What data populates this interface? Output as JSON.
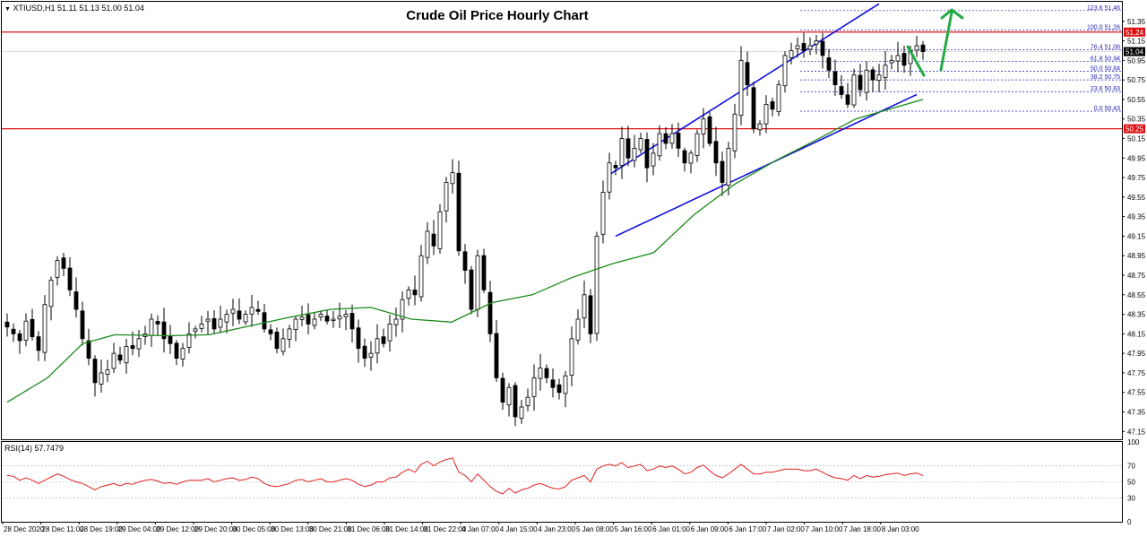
{
  "header": {
    "symbol_label": "XTIUSD,H1",
    "ohlc": "51.11 51.13 51.00 51.04",
    "title": "Crude Oil Price Hourly Chart"
  },
  "rsi_panel": {
    "label": "RSI(14) 57.7479",
    "levels": [
      "100",
      "70",
      "50",
      "30",
      "0"
    ]
  },
  "price_tags": {
    "resistance": "51.24",
    "current": "51.04",
    "support": "50.25"
  },
  "fibonacci": [
    {
      "label": "123.6 51.46",
      "price": 51.46
    },
    {
      "label": "100.0 51.26",
      "price": 51.26
    },
    {
      "label": "76.4 51.06",
      "price": 51.06
    },
    {
      "label": "61.8 50.94",
      "price": 50.94
    },
    {
      "label": "50.0 50.84",
      "price": 50.84
    },
    {
      "label": "38.2 50.75",
      "price": 50.75
    },
    {
      "label": "23.6 50.63",
      "price": 50.63
    },
    {
      "label": "0.0 50.43",
      "price": 50.43
    }
  ],
  "colors": {
    "bull": "#ffffff",
    "bear": "#000000",
    "ma": "#1a8a1a",
    "rsi": "#e02020",
    "horizontal_lines": "#e01010",
    "channel": "#1010e0",
    "fib": "#2020c0",
    "arrows": "#22aa44"
  },
  "chart_data": {
    "type": "candlestick",
    "title": "Crude Oil Price Hourly Chart",
    "symbol": "XTIUSD",
    "timeframe": "H1",
    "y_ticks": [
      51.35,
      51.15,
      50.95,
      50.75,
      50.55,
      50.35,
      50.15,
      49.95,
      49.75,
      49.55,
      49.35,
      49.15,
      48.95,
      48.75,
      48.55,
      48.35,
      48.15,
      47.95,
      47.75,
      47.55,
      47.35,
      47.15
    ],
    "ylim": [
      47.07,
      51.55
    ],
    "x_ticks": [
      "28 Dec 2020",
      "28 Dec 11:00",
      "28 Dec 19:00",
      "29 Dec 04:00",
      "29 Dec 12:00",
      "29 Dec 20:00",
      "30 Dec 05:00",
      "30 Dec 13:00",
      "30 Dec 21:00",
      "31 Dec 06:00",
      "31 Dec 14:00",
      "31 Dec 22:00",
      "4 Jan 07:00",
      "4 Jan 15:00",
      "4 Jan 23:00",
      "5 Jan 08:00",
      "5 Jan 16:00",
      "6 Jan 01:00",
      "6 Jan 09:00",
      "6 Jan 17:00",
      "7 Jan 02:00",
      "7 Jan 10:00",
      "7 Jan 18:00",
      "8 Jan 03:00"
    ],
    "closes": [
      48.22,
      48.15,
      48.08,
      48.28,
      48.12,
      47.98,
      48.45,
      48.7,
      48.9,
      48.82,
      48.6,
      48.4,
      48.1,
      47.9,
      47.65,
      47.75,
      47.78,
      47.95,
      47.88,
      48.02,
      48.0,
      48.1,
      48.15,
      48.3,
      48.25,
      48.1,
      48.05,
      47.9,
      48.0,
      48.15,
      48.2,
      48.25,
      48.3,
      48.2,
      48.3,
      48.35,
      48.4,
      48.3,
      48.35,
      48.42,
      48.38,
      48.2,
      48.15,
      48.0,
      48.1,
      48.2,
      48.3,
      48.32,
      48.25,
      48.3,
      48.35,
      48.28,
      48.3,
      48.33,
      48.35,
      48.2,
      48.0,
      47.9,
      47.95,
      48.1,
      48.05,
      48.25,
      48.3,
      48.5,
      48.6,
      48.55,
      48.95,
      49.2,
      49.05,
      49.4,
      49.7,
      49.8,
      49.0,
      48.8,
      48.4,
      48.95,
      48.6,
      48.15,
      47.7,
      47.45,
      47.6,
      47.3,
      47.4,
      47.5,
      47.7,
      47.8,
      47.7,
      47.6,
      47.55,
      47.72,
      48.1,
      48.3,
      48.55,
      48.15,
      49.15,
      49.6,
      49.9,
      49.85,
      50.15,
      49.95,
      50.05,
      50.15,
      49.85,
      50.0,
      50.2,
      50.1,
      50.2,
      50.05,
      49.9,
      50.0,
      50.2,
      50.35,
      50.1,
      49.9,
      49.7,
      50.05,
      50.4,
      50.95,
      50.7,
      50.25,
      50.3,
      50.5,
      50.45,
      50.7,
      51.0,
      51.05,
      51.1,
      51.05,
      51.1,
      51.15,
      51.0,
      50.85,
      50.7,
      50.6,
      50.5,
      50.8,
      50.65,
      50.85,
      50.75,
      50.8,
      50.9,
      50.95,
      51.0,
      50.9,
      51.05,
      51.1,
      51.04
    ],
    "rsi_values": [
      58,
      57,
      52,
      55,
      52,
      48,
      52,
      56,
      60,
      57,
      53,
      50,
      48,
      44,
      40,
      44,
      46,
      48,
      45,
      48,
      47,
      50,
      52,
      53,
      51,
      48,
      49,
      47,
      50,
      52,
      52,
      52,
      54,
      50,
      52,
      54,
      55,
      52,
      53,
      56,
      54,
      48,
      45,
      44,
      46,
      48,
      52,
      53,
      50,
      52,
      54,
      50,
      50,
      52,
      54,
      52,
      47,
      44,
      46,
      50,
      50,
      55,
      56,
      62,
      66,
      62,
      72,
      76,
      70,
      75,
      78,
      80,
      62,
      58,
      50,
      60,
      52,
      44,
      38,
      35,
      42,
      36,
      40,
      42,
      46,
      48,
      45,
      42,
      41,
      44,
      52,
      55,
      58,
      50,
      66,
      70,
      72,
      70,
      74,
      68,
      70,
      72,
      64,
      66,
      70,
      68,
      70,
      66,
      60,
      62,
      68,
      71,
      64,
      58,
      55,
      60,
      66,
      72,
      66,
      60,
      60,
      62,
      62,
      64,
      66,
      66,
      66,
      64,
      64,
      66,
      62,
      58,
      55,
      54,
      52,
      58,
      54,
      58,
      56,
      57,
      59,
      60,
      61,
      58,
      60,
      61,
      57.7
    ],
    "ma_anchors": [
      [
        0,
        47.45
      ],
      [
        15,
        47.7
      ],
      [
        28,
        48.05
      ],
      [
        40,
        48.14
      ],
      [
        60,
        48.13
      ],
      [
        75,
        48.14
      ],
      [
        90,
        48.23
      ],
      [
        105,
        48.32
      ],
      [
        120,
        48.4
      ],
      [
        135,
        48.42
      ],
      [
        150,
        48.3
      ],
      [
        165,
        48.27
      ],
      [
        180,
        48.47
      ],
      [
        195,
        48.55
      ],
      [
        210,
        48.73
      ],
      [
        225,
        48.87
      ],
      [
        240,
        48.98
      ],
      [
        255,
        49.37
      ],
      [
        270,
        49.68
      ],
      [
        285,
        49.92
      ],
      [
        300,
        50.13
      ],
      [
        315,
        50.35
      ],
      [
        330,
        50.47
      ],
      [
        340,
        50.55
      ]
    ],
    "horizontal_lines": [
      51.24,
      50.25
    ],
    "current_price": 51.04,
    "rsi_ylim": [
      0,
      100
    ]
  }
}
